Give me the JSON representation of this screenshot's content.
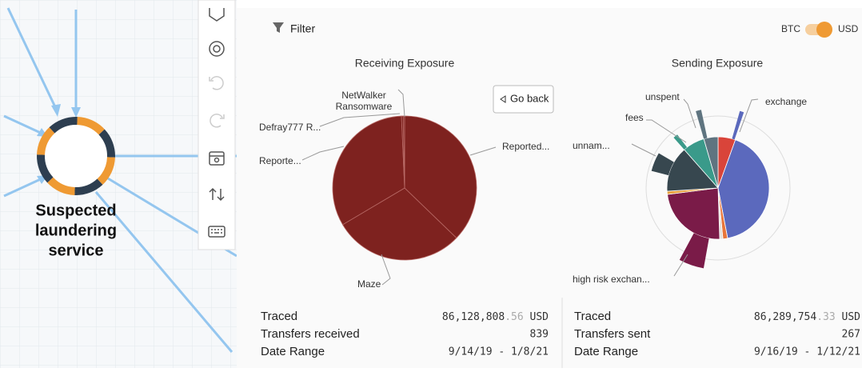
{
  "node_label": [
    "Suspected",
    "laundering",
    "service"
  ],
  "filter": "Filter",
  "toggle": {
    "left": "BTC",
    "right": "USD"
  },
  "go_back": "Go back",
  "receiving": {
    "title": "Receiving Exposure",
    "slices": [
      {
        "label": "Reported...",
        "value": 37.2,
        "color": "#7e221f"
      },
      {
        "label": "Maze",
        "value": 29.3,
        "color": "#7e221f"
      },
      {
        "label": "Reporte...",
        "value": 32.8,
        "color": "#7e221f"
      },
      {
        "label": "Defray777 R...",
        "value": 0.4,
        "color": "#7e221f"
      },
      {
        "label": "NetWalker Ransomware",
        "value": 0.3,
        "color": "#7e221f"
      }
    ]
  },
  "sending": {
    "title": "Sending Exposure",
    "slices": [
      {
        "value": 5.5,
        "color": "#d9443a"
      },
      {
        "label": "exchange",
        "value": 41.5,
        "color": "#5b69bd"
      },
      {
        "value": 1.5,
        "color": "#e8763a"
      },
      {
        "value": 1,
        "color": "#e6e0d8"
      },
      {
        "label": "high risk exchan...",
        "value": 23.5,
        "color": "#7a1b48"
      },
      {
        "value": 1,
        "color": "#e8a03a"
      },
      {
        "label": "unnam...",
        "value": 14.5,
        "color": "#37474f"
      },
      {
        "label": "fees",
        "value": 7,
        "color": "#3a9a8a"
      },
      {
        "label": "unspent",
        "value": 4.5,
        "color": "#5f7480"
      }
    ]
  },
  "receiving_stats": [
    {
      "label": "Traced",
      "value": "86,128,808",
      "cents": ".56",
      "unit": "USD"
    },
    {
      "label": "Transfers received",
      "value": "839"
    },
    {
      "label": "Date Range",
      "value": "9/14/19 - 1/8/21"
    }
  ],
  "sending_stats": [
    {
      "label": "Traced",
      "value": "86,289,754",
      "cents": ".33",
      "unit": "USD"
    },
    {
      "label": "Transfers sent",
      "value": "267"
    },
    {
      "label": "Date Range",
      "value": "9/16/19 - 1/12/21"
    }
  ]
}
